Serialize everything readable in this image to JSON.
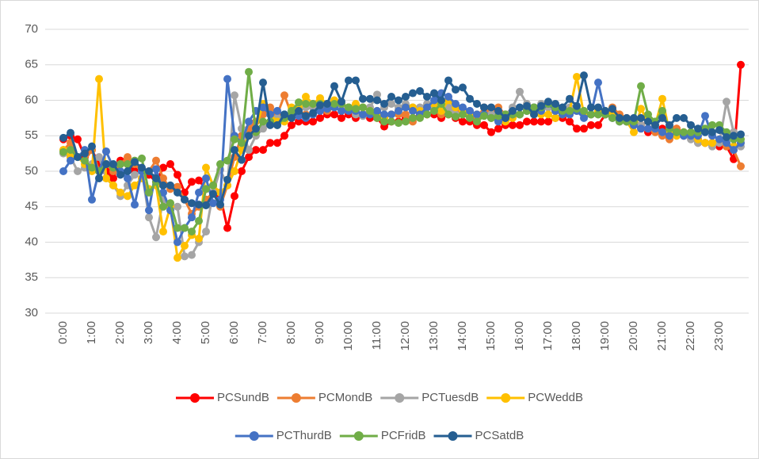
{
  "chart_data": {
    "type": "line",
    "categories": [
      "0:00",
      null,
      null,
      null,
      "1:00",
      null,
      null,
      null,
      "2:00",
      null,
      null,
      null,
      "3:00",
      null,
      null,
      null,
      "4:00",
      null,
      null,
      null,
      "5:00",
      null,
      null,
      null,
      "6:00",
      null,
      null,
      null,
      "7:00",
      null,
      null,
      null,
      "8:00",
      null,
      null,
      null,
      "9:00",
      null,
      null,
      null,
      "10:00",
      null,
      null,
      null,
      "11:00",
      null,
      null,
      null,
      "12:00",
      null,
      null,
      null,
      "13:00",
      null,
      null,
      null,
      "14:00",
      null,
      null,
      null,
      "15:00",
      null,
      null,
      null,
      "16:00",
      null,
      null,
      null,
      "17:00",
      null,
      null,
      null,
      "18:00",
      null,
      null,
      null,
      "19:00",
      null,
      null,
      null,
      "20:00",
      null,
      null,
      null,
      "21:00",
      null,
      null,
      null,
      "22:00",
      null,
      null,
      null,
      "23:00",
      null,
      null,
      null
    ],
    "ylim": [
      30,
      70
    ],
    "yticks": [
      30,
      35,
      40,
      45,
      50,
      55,
      60,
      65,
      70
    ],
    "grid": true,
    "legend": "bottom",
    "series": [
      {
        "name": "PCSundB",
        "color": "#ff0000",
        "values": [
          54.5,
          55,
          54.5,
          52,
          53,
          51,
          50,
          49,
          51.5,
          51,
          50,
          50,
          49.5,
          48.5,
          50.5,
          51,
          49.5,
          47,
          48.5,
          48.7,
          47.5,
          48,
          46.5,
          42,
          46.5,
          50,
          52,
          53,
          53,
          54,
          54,
          55,
          56.5,
          57,
          57,
          57,
          57.5,
          58,
          58,
          57.5,
          58,
          57.5,
          58,
          57.5,
          57.5,
          56.3,
          57,
          57,
          57.5,
          57.5,
          58,
          58,
          58,
          57.5,
          58,
          57.5,
          57,
          57,
          56.5,
          56.5,
          55.5,
          56,
          56.5,
          56.5,
          56.5,
          57,
          57,
          57,
          57,
          57.5,
          57.5,
          57,
          56,
          56,
          56.5,
          56.5,
          58,
          58,
          57.5,
          57,
          57,
          56.5,
          55.5,
          56,
          56,
          55.5,
          56,
          55,
          55,
          54.5,
          54,
          54,
          53.5,
          53.5,
          51.7,
          65
        ]
      },
      {
        "name": "PCMondB",
        "color": "#ed7d31",
        "values": [
          53,
          54,
          52,
          51.5,
          53,
          50,
          51,
          50,
          51,
          52,
          51,
          50,
          50,
          51.5,
          49,
          47.5,
          47.8,
          46,
          44,
          45,
          46,
          47,
          45,
          48,
          52,
          55,
          56,
          57,
          58,
          59,
          58,
          60.7,
          58,
          58.5,
          58,
          58,
          59,
          58.5,
          59,
          59,
          59,
          58.5,
          58,
          58.5,
          58,
          57.5,
          58,
          58,
          58,
          57,
          58,
          59,
          58.5,
          58,
          58,
          58.5,
          58,
          58,
          57.5,
          59,
          58,
          59,
          58,
          58,
          58,
          58.5,
          59,
          59,
          59,
          58.5,
          58,
          58,
          58.5,
          58,
          58,
          58,
          58,
          59,
          58,
          57.5,
          57,
          56,
          56,
          55.5,
          55,
          54.5,
          56,
          55.5,
          55,
          54,
          54,
          54,
          54,
          53.5,
          53,
          50.7
        ]
      },
      {
        "name": "PCTuesdB",
        "color": "#a5a5a5",
        "values": [
          52.5,
          52,
          50,
          50.5,
          51,
          52,
          49,
          48,
          46.5,
          48,
          49.5,
          50,
          43.5,
          40.7,
          46,
          45,
          45,
          38,
          38.2,
          40,
          41.5,
          47,
          50.2,
          48,
          60.7,
          56,
          53,
          55,
          56,
          57,
          57.5,
          58,
          58,
          58.5,
          59,
          59,
          59.5,
          59,
          59.5,
          59,
          59,
          58,
          57.8,
          59,
          60.8,
          59,
          59.5,
          59,
          59.5,
          59,
          59,
          59.5,
          59,
          58.5,
          59,
          58,
          58,
          58.5,
          58,
          58,
          58,
          58.5,
          58,
          59,
          61.2,
          59.5,
          59,
          59.5,
          59,
          59,
          59,
          59,
          58.5,
          58.5,
          58,
          58,
          58,
          57.5,
          57.5,
          57,
          57,
          56.5,
          56,
          56,
          55.5,
          55,
          55,
          55,
          54.5,
          54,
          54,
          53.5,
          54,
          59.8,
          55.5,
          53.5
        ]
      },
      {
        "name": "PCWeddB",
        "color": "#ffc000",
        "values": [
          53,
          52,
          52,
          51,
          50,
          63,
          49,
          48,
          47,
          46.5,
          48,
          49,
          47.5,
          48,
          41.5,
          45,
          37.8,
          39.5,
          41,
          40.5,
          50.5,
          48,
          47,
          48,
          50,
          53,
          55,
          56,
          59.5,
          58,
          57,
          57,
          59,
          59,
          60.5,
          59.5,
          60.3,
          59.5,
          60,
          59.5,
          59,
          59.5,
          59,
          58.5,
          58.5,
          57.5,
          58,
          58.5,
          59,
          59,
          58.5,
          59,
          59.5,
          58.5,
          60,
          59,
          58.5,
          58,
          58,
          58,
          57.5,
          57.5,
          57,
          57.5,
          58,
          58.5,
          58,
          58,
          58,
          57.5,
          58,
          58.5,
          63.3,
          58,
          58,
          58.5,
          58.5,
          58,
          57.5,
          57,
          55.5,
          58.8,
          57,
          56.5,
          60.2,
          55.5,
          55,
          55.5,
          55,
          54.5,
          54,
          54,
          54.5,
          54,
          53.5,
          54
        ]
      },
      {
        "name": "PCThurdB",
        "color": "#4472c4",
        "values": [
          50,
          51.5,
          52,
          53,
          46,
          50,
          52.8,
          50.5,
          50,
          49,
          45.3,
          50,
          44.5,
          50.3,
          47,
          44.5,
          40,
          42,
          43.5,
          47,
          49,
          45.5,
          46,
          63,
          55,
          54,
          57,
          58.5,
          59,
          58,
          58.5,
          58,
          58,
          57.8,
          57.5,
          58,
          58.5,
          58.8,
          59,
          58.5,
          58.5,
          58.5,
          58,
          58,
          58.5,
          58,
          58,
          58.5,
          59,
          58.5,
          58,
          59,
          60,
          61,
          60.5,
          59.5,
          59,
          58.5,
          58,
          58,
          57.5,
          57,
          57.5,
          58,
          58,
          58.5,
          59,
          58.5,
          59.5,
          58.5,
          58,
          58,
          58.5,
          57.5,
          58,
          62.5,
          58,
          57.5,
          57,
          57,
          56.5,
          56,
          56,
          56,
          55.5,
          55,
          55.5,
          55,
          55,
          55,
          57.8,
          55,
          54.5,
          54,
          53,
          54
        ]
      },
      {
        "name": "PCFridB",
        "color": "#70ad47",
        "values": [
          52.7,
          53,
          52,
          51.5,
          50.5,
          50,
          51,
          50.5,
          51,
          51,
          51.5,
          51.8,
          47,
          48.5,
          45,
          45.5,
          42,
          42,
          41.5,
          43,
          47.5,
          48,
          51,
          51.5,
          54.5,
          54,
          64,
          55.5,
          57,
          57,
          56.5,
          57.5,
          58.5,
          59.7,
          59.5,
          59.5,
          59.5,
          59.5,
          59.5,
          59.5,
          59,
          58.8,
          59,
          58.5,
          57.5,
          57,
          57,
          56.8,
          57,
          57.5,
          57.5,
          58,
          58.5,
          59.5,
          58,
          57.7,
          58,
          57.5,
          57,
          57.8,
          57.5,
          57.8,
          58,
          58,
          58,
          58.5,
          59,
          59,
          59.5,
          59,
          58.5,
          58.5,
          58.8,
          58.5,
          58,
          58,
          58,
          57.5,
          57,
          57,
          57,
          62,
          58,
          57,
          58.5,
          56,
          55.5,
          55.5,
          55.5,
          55.5,
          56,
          56.5,
          56.5,
          55.5,
          54.5,
          54.5
        ]
      },
      {
        "name": "PCSatdB",
        "color": "#255e91",
        "values": [
          54.7,
          55.4,
          52,
          52.5,
          53.5,
          49,
          51,
          51,
          49.5,
          50,
          51.3,
          50.5,
          50,
          49,
          48,
          48,
          47,
          46,
          45.5,
          45.3,
          45.2,
          46.8,
          45.3,
          48.8,
          53,
          51.6,
          55,
          56,
          62.5,
          56.5,
          56.5,
          58,
          57.5,
          58.5,
          57.8,
          58.2,
          59.3,
          59.5,
          62,
          59.8,
          62.8,
          62.8,
          60.2,
          60.2,
          60,
          59.5,
          60.5,
          60,
          60.5,
          61,
          61.3,
          60.5,
          61,
          60,
          62.8,
          61.5,
          61.8,
          60.2,
          59.5,
          59,
          59,
          58.5,
          57.5,
          58.5,
          59,
          59.2,
          58,
          59.2,
          59.8,
          59.5,
          59,
          60.2,
          59.2,
          63.5,
          59,
          59,
          58.5,
          58.8,
          57.5,
          57.5,
          57.5,
          57.5,
          57,
          56.5,
          57.5,
          56.5,
          57.5,
          57.5,
          56.5,
          56,
          55.5,
          55.5,
          55.8,
          54.8,
          55,
          55.2
        ]
      }
    ]
  }
}
